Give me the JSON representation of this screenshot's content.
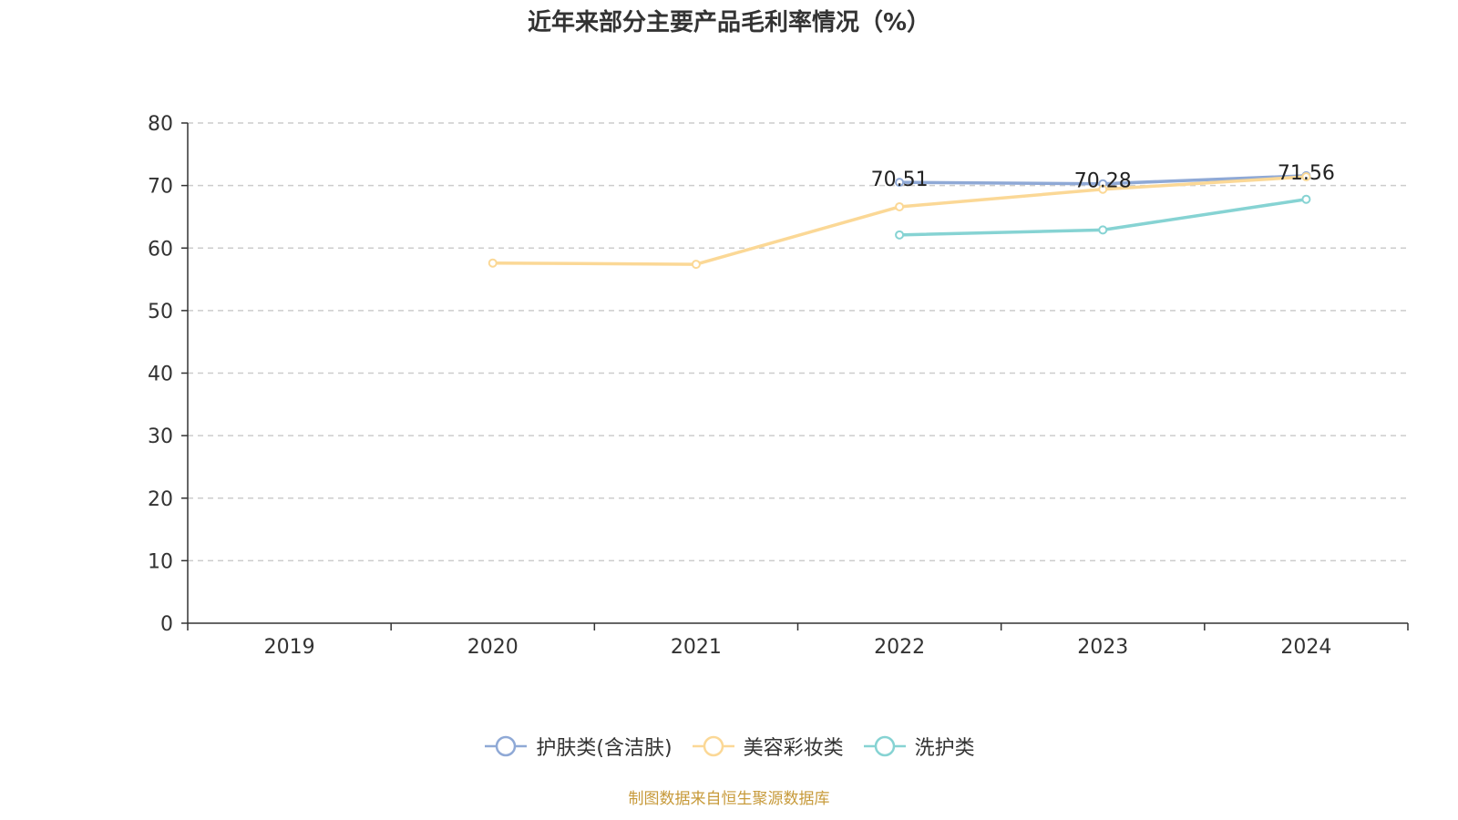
{
  "chart_data": {
    "type": "line",
    "title": "近年来部分主要产品毛利率情况（%）",
    "xlabel": "",
    "ylabel": "",
    "categories": [
      "2019",
      "2020",
      "2021",
      "2022",
      "2023",
      "2024"
    ],
    "ylim": [
      0,
      80
    ],
    "yticks": [
      0,
      10,
      20,
      30,
      40,
      50,
      60,
      70,
      80
    ],
    "grid": true,
    "legend_position": "bottom",
    "series": [
      {
        "name": "护肤类(含洁肤)",
        "color": "#8fa9d6",
        "values": [
          null,
          null,
          null,
          70.51,
          70.28,
          71.56
        ],
        "labels": [
          null,
          null,
          null,
          "70.51",
          "70.28",
          "71.56"
        ]
      },
      {
        "name": "美容彩妆类",
        "color": "#fbd896",
        "values": [
          null,
          57.6,
          57.4,
          66.6,
          69.4,
          71.4
        ],
        "labels": [
          null,
          null,
          null,
          null,
          null,
          null
        ]
      },
      {
        "name": "洗护类",
        "color": "#86d3d3",
        "values": [
          null,
          null,
          null,
          62.1,
          62.9,
          67.8
        ],
        "labels": [
          null,
          null,
          null,
          null,
          null,
          null
        ]
      }
    ]
  },
  "source_note": "制图数据来自恒生聚源数据库"
}
